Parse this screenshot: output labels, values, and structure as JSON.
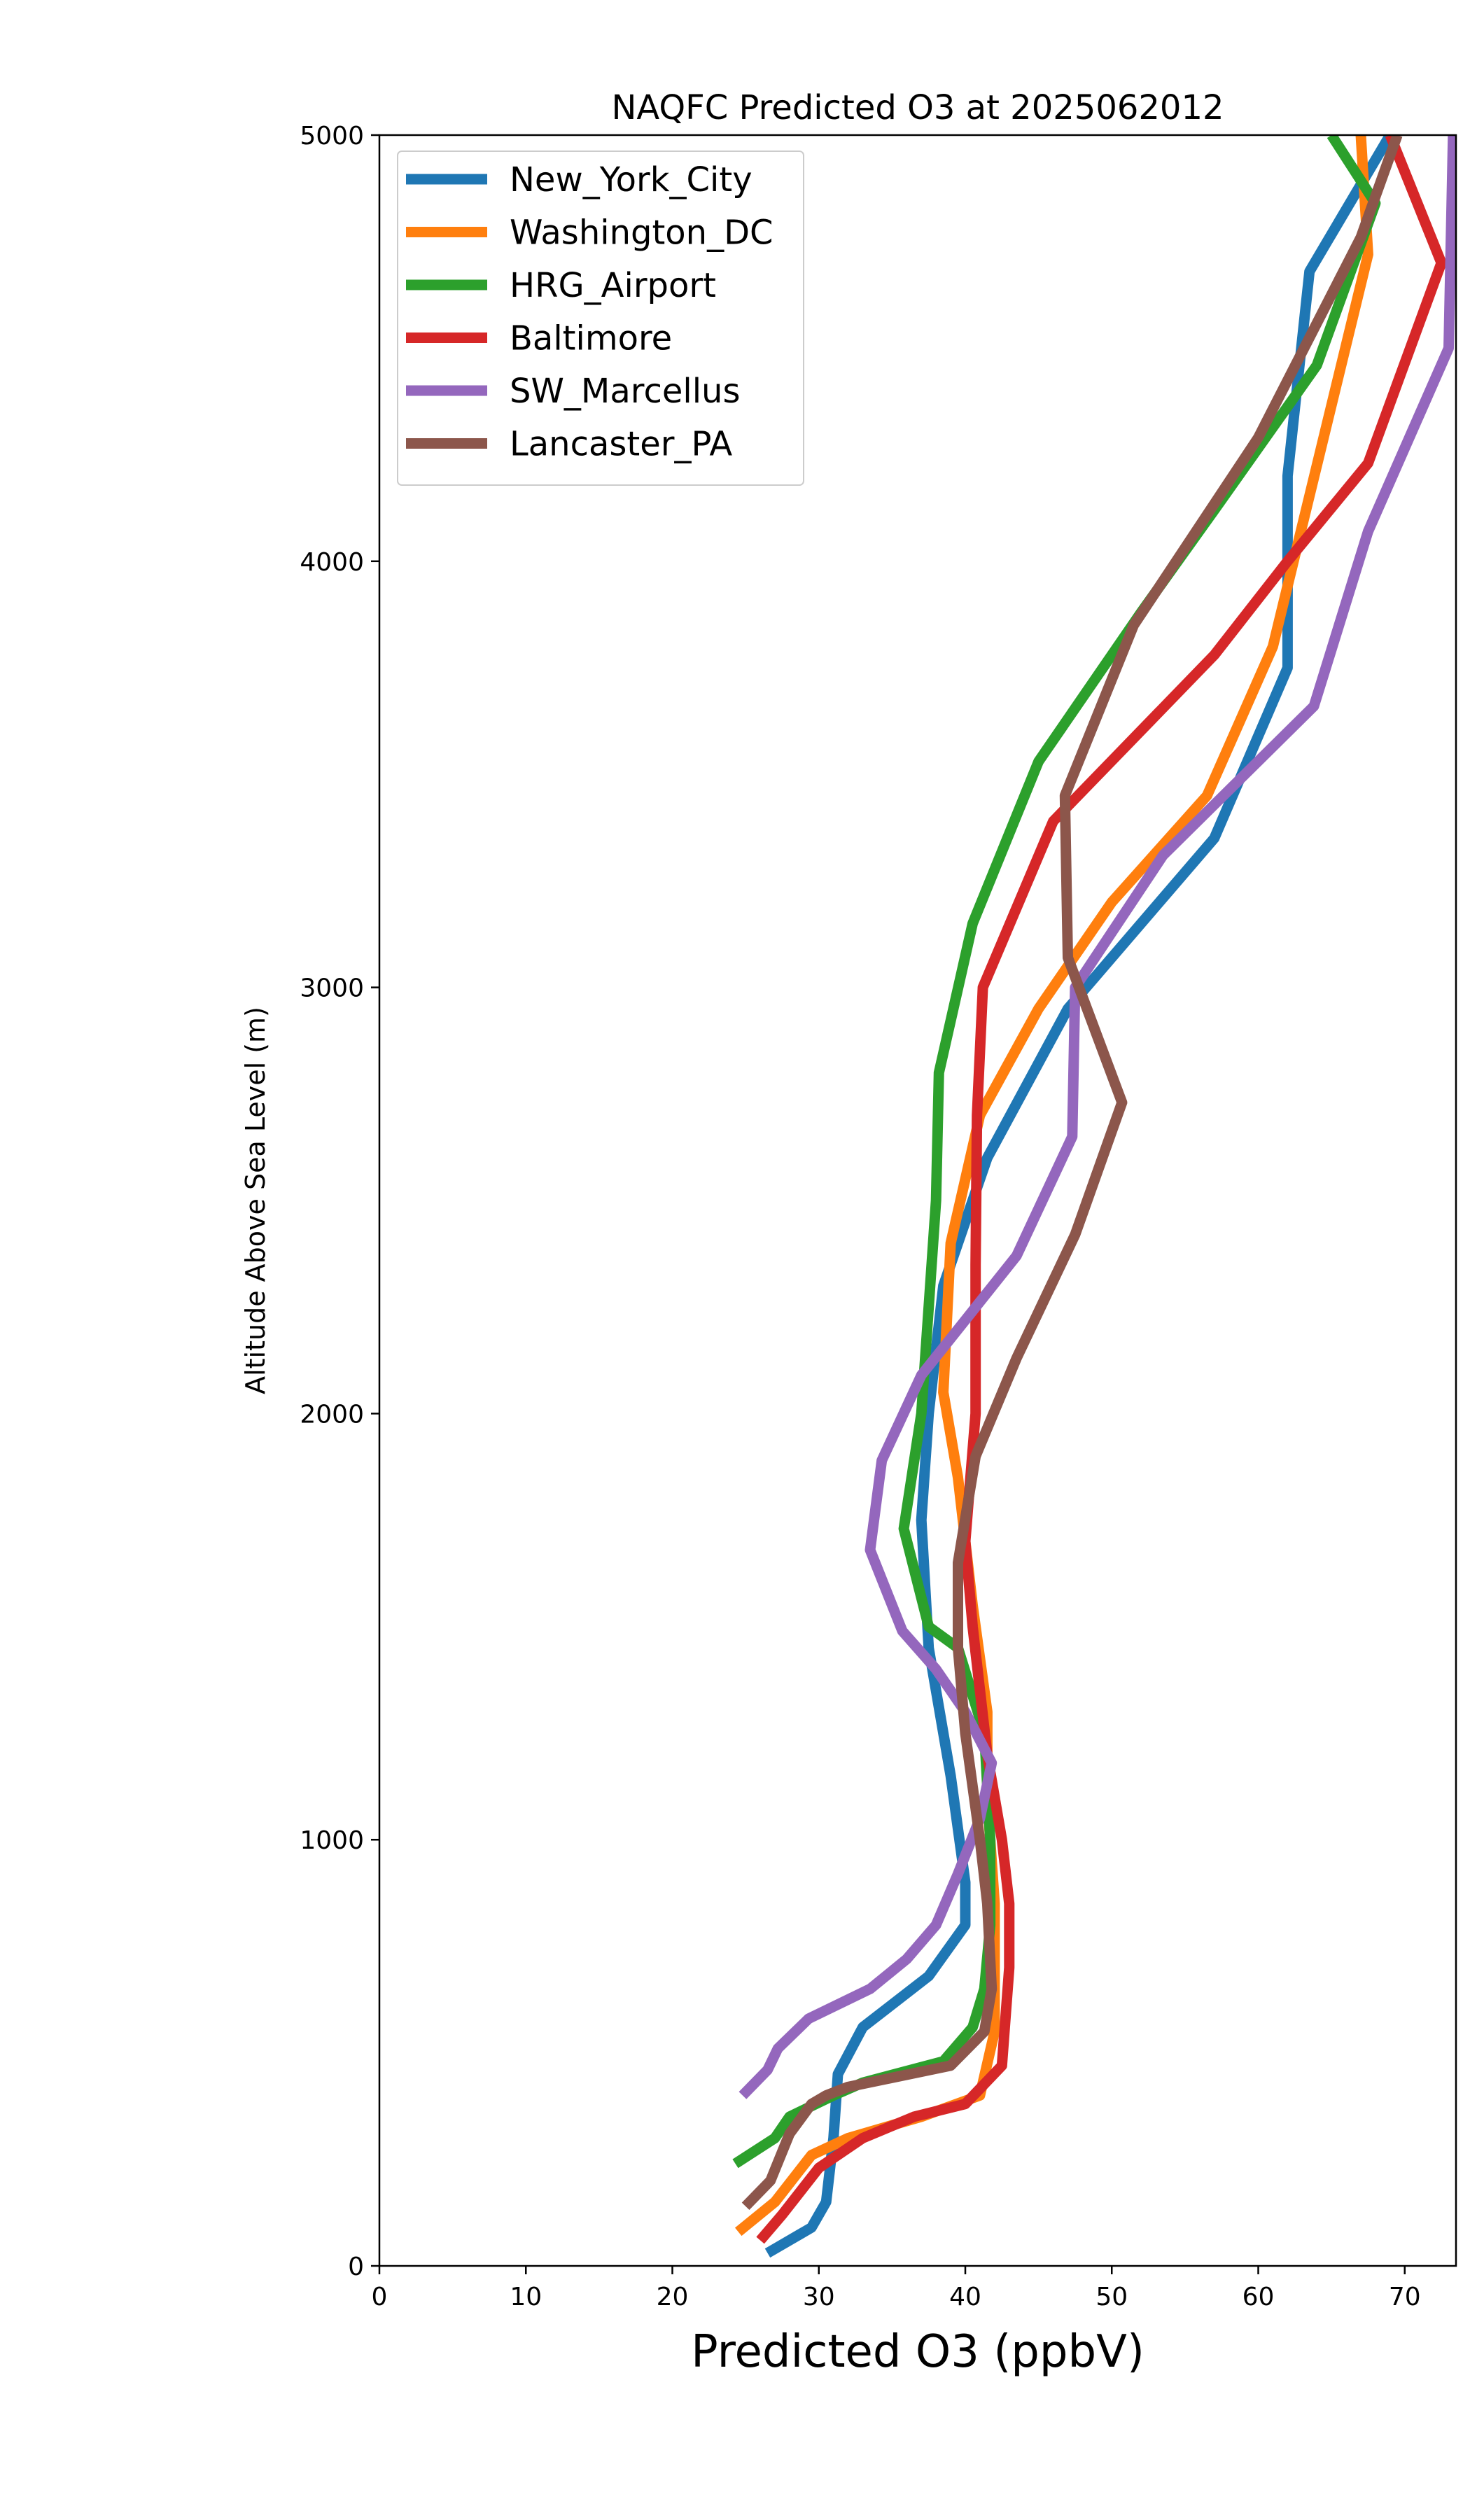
{
  "chart_data": {
    "type": "line",
    "title": "NAQFC Predicted O3 at 2025062012",
    "xlabel": "Predicted O3 (ppbV)",
    "ylabel": "Altitude Above Sea Level (m)",
    "xlim": [
      0,
      73.5
    ],
    "ylim": [
      0,
      5000
    ],
    "xticks": [
      0,
      10,
      20,
      30,
      40,
      50,
      60,
      70
    ],
    "yticks": [
      0,
      1000,
      2000,
      3000,
      4000,
      5000
    ],
    "grid": false,
    "legend_position": "upper-left",
    "series": [
      {
        "name": "New_York_City",
        "color": "#1f77b4",
        "points": [
          [
            26.5,
            30
          ],
          [
            29.5,
            90
          ],
          [
            30.5,
            150
          ],
          [
            31,
            300
          ],
          [
            31.3,
            450
          ],
          [
            33,
            560
          ],
          [
            37.5,
            680
          ],
          [
            40,
            800
          ],
          [
            40,
            900
          ],
          [
            39,
            1150
          ],
          [
            37.5,
            1450
          ],
          [
            37,
            1750
          ],
          [
            37.5,
            2000
          ],
          [
            38.5,
            2300
          ],
          [
            41.5,
            2600
          ],
          [
            47,
            2950
          ],
          [
            57,
            3350
          ],
          [
            62,
            3750
          ],
          [
            62,
            4200
          ],
          [
            63.5,
            4680
          ],
          [
            69,
            5000
          ]
        ]
      },
      {
        "name": "Washington_DC",
        "color": "#ff7f0e",
        "points": [
          [
            24.5,
            80
          ],
          [
            27,
            150
          ],
          [
            29.5,
            260
          ],
          [
            32,
            300
          ],
          [
            37,
            350
          ],
          [
            41,
            400
          ],
          [
            42,
            550
          ],
          [
            42,
            850
          ],
          [
            41.5,
            1100
          ],
          [
            41.5,
            1300
          ],
          [
            40.5,
            1550
          ],
          [
            39.5,
            1850
          ],
          [
            38.5,
            2050
          ],
          [
            39,
            2400
          ],
          [
            41,
            2700
          ],
          [
            45,
            2950
          ],
          [
            50,
            3200
          ],
          [
            56.5,
            3450
          ],
          [
            61,
            3800
          ],
          [
            67.5,
            4720
          ],
          [
            67,
            5000
          ]
        ]
      },
      {
        "name": "HRG_Airport",
        "color": "#2ca02c",
        "points": [
          [
            24.3,
            240
          ],
          [
            27,
            300
          ],
          [
            28,
            350
          ],
          [
            31,
            400
          ],
          [
            33,
            430
          ],
          [
            38.5,
            480
          ],
          [
            40.5,
            560
          ],
          [
            41.3,
            650
          ],
          [
            41.7,
            800
          ],
          [
            41.7,
            1000
          ],
          [
            41.3,
            1250
          ],
          [
            39.5,
            1450
          ],
          [
            37.5,
            1500
          ],
          [
            35.8,
            1730
          ],
          [
            37,
            2000
          ],
          [
            37.5,
            2250
          ],
          [
            38,
            2500
          ],
          [
            38.2,
            2800
          ],
          [
            40.5,
            3150
          ],
          [
            45,
            3530
          ],
          [
            52,
            3880
          ],
          [
            57,
            4120
          ],
          [
            64,
            4460
          ],
          [
            68,
            4840
          ],
          [
            65,
            5000
          ]
        ]
      },
      {
        "name": "Baltimore",
        "color": "#d62728",
        "points": [
          [
            26,
            60
          ],
          [
            27.5,
            120
          ],
          [
            30,
            230
          ],
          [
            33,
            300
          ],
          [
            36.5,
            350
          ],
          [
            40,
            380
          ],
          [
            42.5,
            470
          ],
          [
            43,
            700
          ],
          [
            43,
            850
          ],
          [
            42.5,
            1000
          ],
          [
            41.5,
            1200
          ],
          [
            40.5,
            1500
          ],
          [
            40,
            1700
          ],
          [
            40.7,
            2000
          ],
          [
            40.7,
            2350
          ],
          [
            40.8,
            2700
          ],
          [
            41.2,
            3000
          ],
          [
            46,
            3390
          ],
          [
            57,
            3780
          ],
          [
            62,
            4000
          ],
          [
            67.5,
            4230
          ],
          [
            72.5,
            4700
          ],
          [
            69,
            5000
          ]
        ]
      },
      {
        "name": "SW_Marcellus",
        "color": "#9467bd",
        "points": [
          [
            24.8,
            400
          ],
          [
            26.5,
            460
          ],
          [
            27.2,
            510
          ],
          [
            29.3,
            580
          ],
          [
            33.5,
            650
          ],
          [
            36,
            720
          ],
          [
            38,
            800
          ],
          [
            39.5,
            920
          ],
          [
            41,
            1050
          ],
          [
            41.8,
            1180
          ],
          [
            40,
            1300
          ],
          [
            38,
            1400
          ],
          [
            35.7,
            1490
          ],
          [
            33.5,
            1680
          ],
          [
            34.3,
            1890
          ],
          [
            37,
            2090
          ],
          [
            43.5,
            2370
          ],
          [
            47.3,
            2650
          ],
          [
            47.5,
            3000
          ],
          [
            53.5,
            3310
          ],
          [
            63.8,
            3660
          ],
          [
            67.5,
            4070
          ],
          [
            73,
            4500
          ],
          [
            73.3,
            5000
          ]
        ]
      },
      {
        "name": "Lancaster_PA",
        "color": "#8c564b",
        "points": [
          [
            25,
            140
          ],
          [
            26.7,
            200
          ],
          [
            28,
            310
          ],
          [
            29.5,
            380
          ],
          [
            30.5,
            400
          ],
          [
            32,
            420
          ],
          [
            39,
            470
          ],
          [
            41.3,
            550
          ],
          [
            41.8,
            650
          ],
          [
            41.5,
            850
          ],
          [
            41,
            1000
          ],
          [
            40,
            1250
          ],
          [
            39.5,
            1450
          ],
          [
            39.5,
            1650
          ],
          [
            40.7,
            1900
          ],
          [
            43.5,
            2130
          ],
          [
            47.5,
            2420
          ],
          [
            50.7,
            2730
          ],
          [
            47,
            3070
          ],
          [
            46.8,
            3450
          ],
          [
            51.5,
            3850
          ],
          [
            60,
            4290
          ],
          [
            67,
            4760
          ],
          [
            69.5,
            5000
          ]
        ]
      }
    ]
  }
}
